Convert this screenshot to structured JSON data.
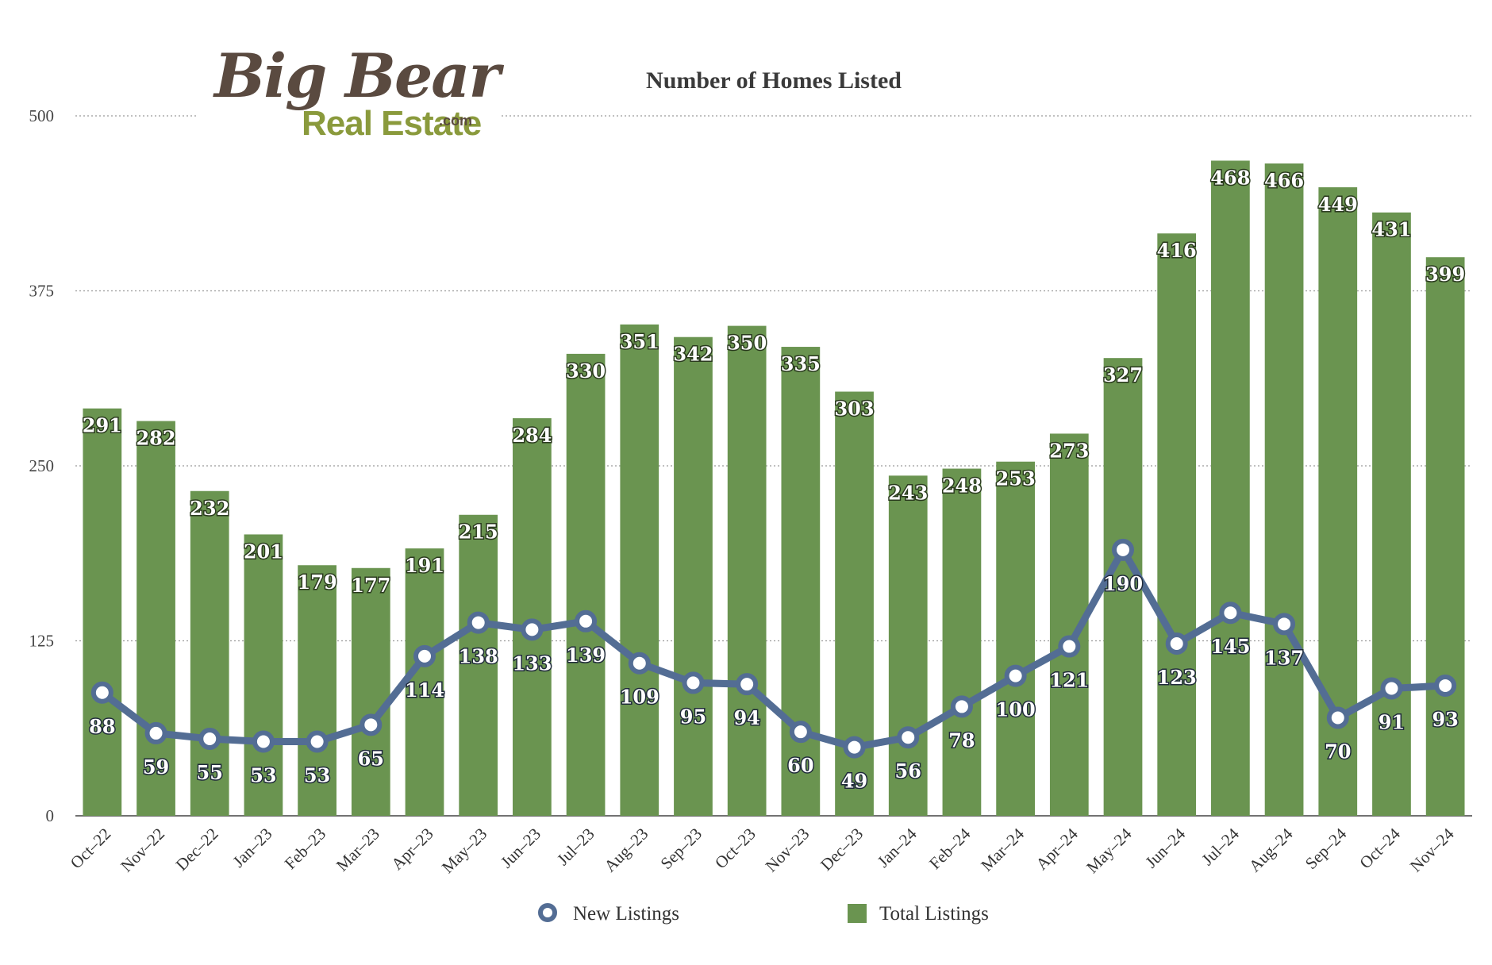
{
  "logo": {
    "line1": "Big Bear",
    "line2": "Real Estate",
    "suffix": ".com"
  },
  "chart_data": {
    "type": "bar",
    "title": "Number of Homes Listed",
    "xlabel": "",
    "ylabel": "",
    "ylim": [
      0,
      500
    ],
    "yticks": [
      0,
      125,
      250,
      375,
      500
    ],
    "grid": true,
    "legend_position": "bottom",
    "categories": [
      "Oct–22",
      "Nov–22",
      "Dec–22",
      "Jan–23",
      "Feb–23",
      "Mar–23",
      "Apr–23",
      "May–23",
      "Jun–23",
      "Jul–23",
      "Aug–23",
      "Sep–23",
      "Oct–23",
      "Nov–23",
      "Dec–23",
      "Jan–24",
      "Feb–24",
      "Mar–24",
      "Apr–24",
      "May–24",
      "Jun–24",
      "Jul–24",
      "Aug–24",
      "Sep–24",
      "Oct–24",
      "Nov–24"
    ],
    "series": [
      {
        "name": "Total Listings",
        "type": "bar",
        "color": "#6a9450",
        "values": [
          291,
          282,
          232,
          201,
          179,
          177,
          191,
          215,
          284,
          330,
          351,
          342,
          350,
          335,
          303,
          243,
          248,
          253,
          273,
          327,
          416,
          468,
          466,
          449,
          431,
          399
        ]
      },
      {
        "name": "New Listings",
        "type": "line",
        "color": "#536d94",
        "values": [
          88,
          59,
          55,
          53,
          53,
          65,
          114,
          138,
          133,
          139,
          109,
          95,
          94,
          60,
          49,
          56,
          78,
          100,
          121,
          190,
          123,
          145,
          137,
          70,
          91,
          93
        ]
      }
    ]
  }
}
